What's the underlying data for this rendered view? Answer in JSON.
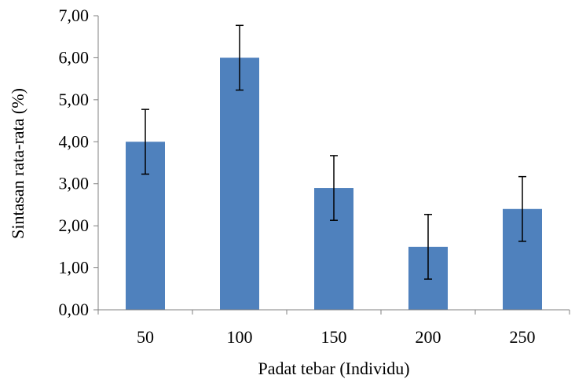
{
  "chart_data": {
    "type": "bar",
    "categories": [
      "50",
      "100",
      "150",
      "200",
      "250"
    ],
    "values": [
      4.0,
      6.0,
      2.9,
      1.5,
      2.4
    ],
    "error": [
      0.77,
      0.77,
      0.77,
      0.77,
      0.77
    ],
    "xlabel": "Padat tebar (Individu)",
    "ylabel": "Sintasan rata-rata (%)",
    "ylim": [
      0,
      7
    ],
    "yticks": [
      "0,00",
      "1,00",
      "2,00",
      "3,00",
      "4,00",
      "5,00",
      "6,00",
      "7,00"
    ],
    "grid": false,
    "bar_color": "#4f81bd"
  }
}
